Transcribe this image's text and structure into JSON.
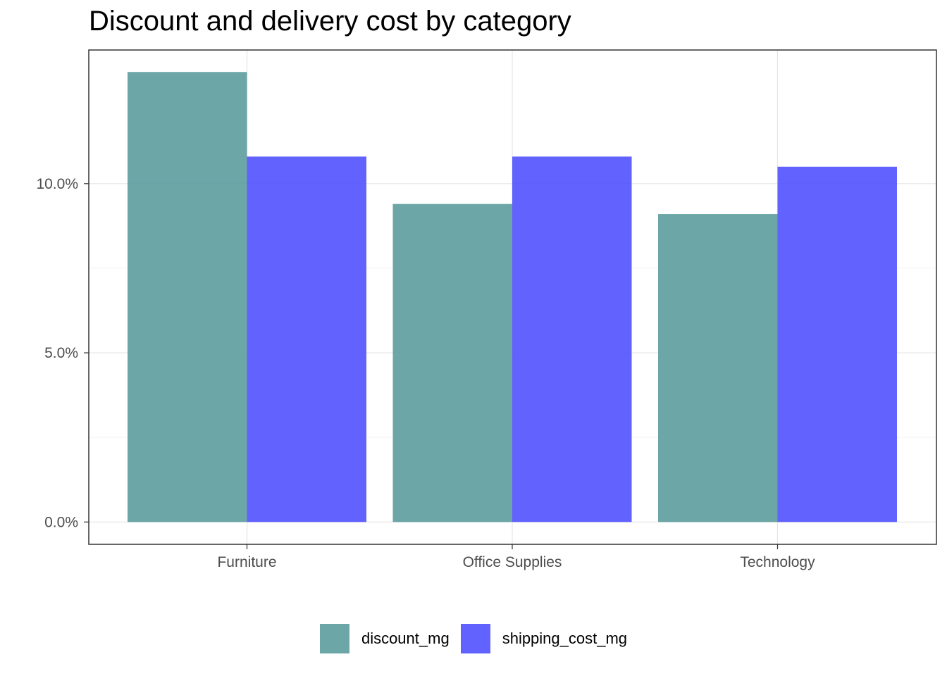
{
  "chart_data": {
    "type": "bar",
    "title": "Discount and delivery cost by category",
    "xlabel": "",
    "ylabel": "",
    "categories": [
      "Furniture",
      "Office Supplies",
      "Technology"
    ],
    "series": [
      {
        "name": "discount_mg",
        "values": [
          13.3,
          9.4,
          9.1
        ],
        "color": "#5f9ea0"
      },
      {
        "name": "shipping_cost_mg",
        "values": [
          10.8,
          10.8,
          10.5
        ],
        "color": "#5555ff"
      }
    ],
    "ylim": [
      -0.66,
      13.95
    ],
    "y_ticks": [
      {
        "value": 0,
        "label": "0.0%"
      },
      {
        "value": 5,
        "label": "5.0%"
      },
      {
        "value": 10,
        "label": "10.0%"
      }
    ],
    "grid": true,
    "legend_position": "bottom"
  }
}
